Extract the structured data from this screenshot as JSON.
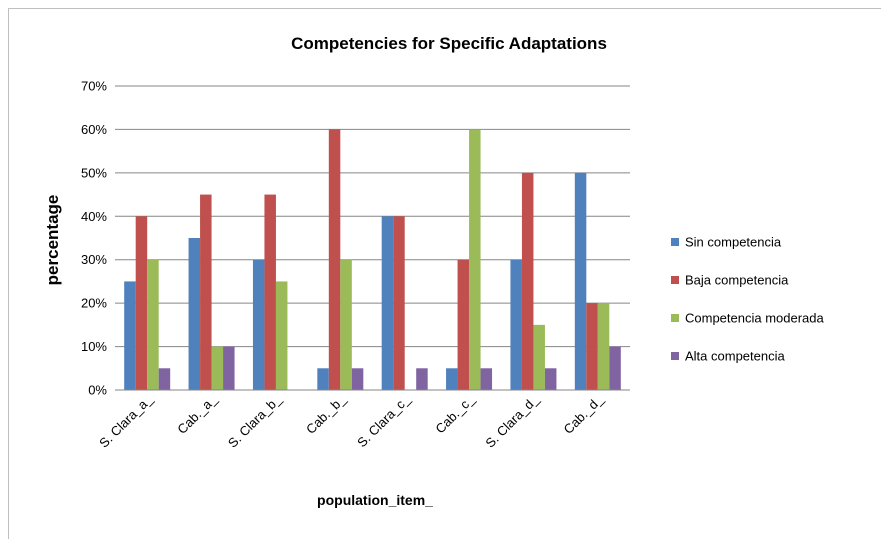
{
  "chart_data": {
    "type": "bar",
    "title": "Competencies for Specific Adaptations",
    "xlabel": "population_item_",
    "ylabel": "percentage",
    "ylim": [
      0,
      70
    ],
    "ytick_step": 10,
    "y_tick_format": "percent",
    "grid": true,
    "legend_position": "right",
    "categories": [
      "S. Clara_a_",
      "Cab._a_",
      "S. Clara_b_",
      "Cab._b_",
      "S. Clara_c_",
      "Cab._c_",
      "S. Clara_d_",
      "Cab._d_"
    ],
    "series": [
      {
        "name": "Sin competencia",
        "color": "#4f81bd",
        "values": [
          25,
          35,
          30,
          5,
          40,
          5,
          30,
          50
        ]
      },
      {
        "name": "Baja competencia",
        "color": "#c0504d",
        "values": [
          40,
          45,
          45,
          60,
          40,
          30,
          50,
          20
        ]
      },
      {
        "name": "Competencia moderada",
        "color": "#9bbb59",
        "values": [
          30,
          10,
          25,
          30,
          0,
          60,
          15,
          20
        ]
      },
      {
        "name": "Alta competencia",
        "color": "#8064a2",
        "values": [
          5,
          10,
          0,
          5,
          5,
          5,
          5,
          10
        ]
      }
    ]
  }
}
